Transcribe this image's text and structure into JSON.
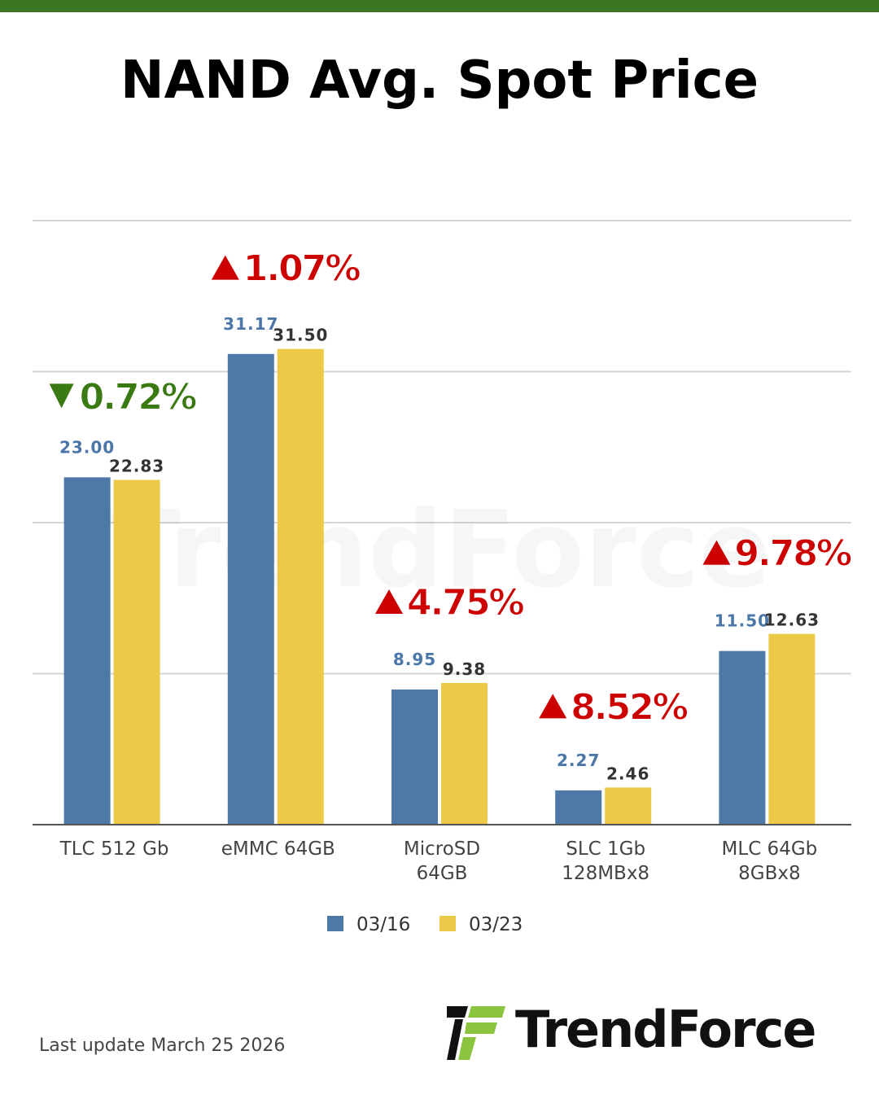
{
  "header": {
    "bar_color": "#3a7522"
  },
  "colors": {
    "series_a": "#4e79a7",
    "series_b": "#edc948",
    "up": "#cc0000",
    "down": "#3a7a12",
    "grid": "#d6d6d6"
  },
  "watermark": "TrendForce",
  "chart_data": {
    "type": "bar",
    "title": "NAND Avg. Spot Price",
    "categories": [
      [
        "TLC 512 Gb"
      ],
      [
        "eMMC 64GB"
      ],
      [
        "MicroSD",
        "64GB"
      ],
      [
        "SLC 1Gb",
        "128MBx8"
      ],
      [
        "MLC 64Gb",
        "8GBx8"
      ]
    ],
    "series": [
      {
        "name": "03/16",
        "values": [
          23.0,
          31.17,
          8.95,
          2.27,
          11.5
        ],
        "labels": [
          "23.00",
          "31.17",
          "8.95",
          "2.27",
          "11.50"
        ]
      },
      {
        "name": "03/23",
        "values": [
          22.83,
          31.5,
          9.38,
          2.46,
          12.63
        ],
        "labels": [
          "22.83",
          "31.50",
          "9.38",
          "2.46",
          "12.63"
        ]
      }
    ],
    "changes": [
      {
        "direction": "down",
        "text": "0.72%"
      },
      {
        "direction": "up",
        "text": "1.07%"
      },
      {
        "direction": "up",
        "text": "4.75%"
      },
      {
        "direction": "up",
        "text": "8.52%"
      },
      {
        "direction": "up",
        "text": "9.78%"
      }
    ],
    "ylim": [
      0,
      40
    ],
    "grid": true,
    "legend_position": "bottom"
  },
  "footer": {
    "last_update": "Last update March 25  2026"
  },
  "brand": {
    "name": "TrendForce"
  }
}
